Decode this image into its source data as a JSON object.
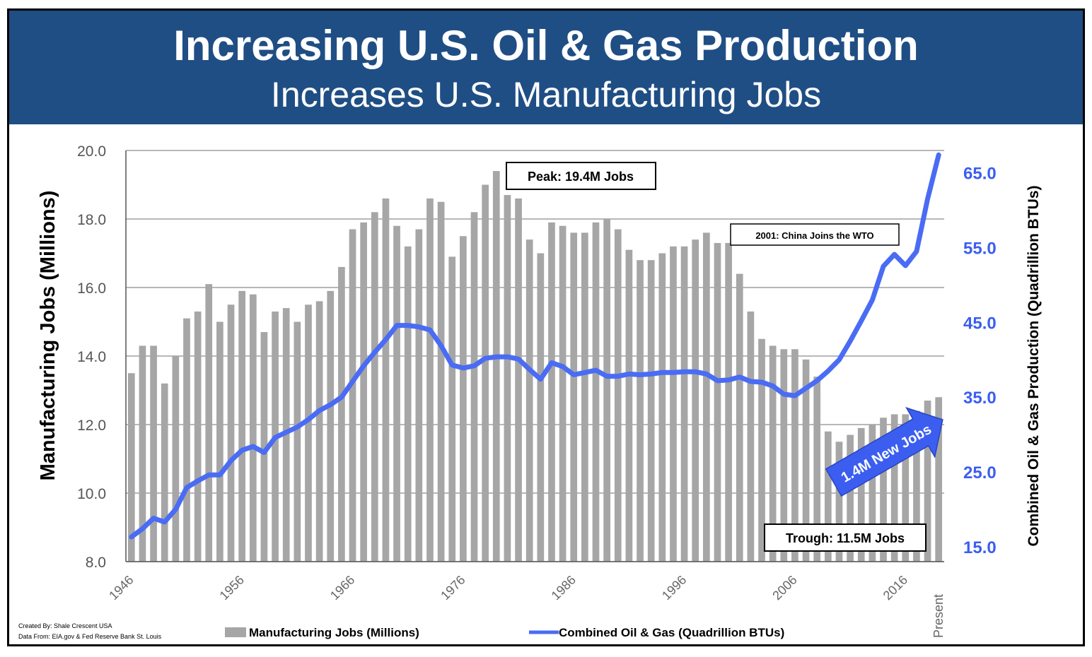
{
  "title": "Increasing U.S. Oil & Gas Production",
  "subtitle": "Increases U.S. Manufacturing Jobs",
  "credits": {
    "created_by": "Created By: Shale Crescent USA",
    "data_from": "Data From: EIA.gov & Fed Reserve Bank St. Louis"
  },
  "colors": {
    "banner": "#1f4e84",
    "bars": "#a6a6a6",
    "line": "#4a6cf4",
    "right_axis_text": "#3b5ef0"
  },
  "chart_data": {
    "type": "bar+line",
    "xlabel": "",
    "ylabel_left": "Manufacturing Jobs (Millions)",
    "ylabel_right": "Combined Oil & Gas Production (Quadrillion BTUs)",
    "ylim_left": [
      8.0,
      20.0
    ],
    "yticks_left": [
      "8.0",
      "10.0",
      "12.0",
      "14.0",
      "16.0",
      "18.0",
      "20.0"
    ],
    "ylim_right": [
      13.0,
      68.0
    ],
    "yticks_right": [
      "15.0",
      "25.0",
      "35.0",
      "45.0",
      "55.0",
      "65.0"
    ],
    "x_tick_labels": [
      "1946",
      "1956",
      "1966",
      "1976",
      "1986",
      "1996",
      "2006",
      "2016",
      "Present"
    ],
    "grid": true,
    "legend_position": "bottom",
    "categories": [
      "1946",
      "1947",
      "1948",
      "1949",
      "1950",
      "1951",
      "1952",
      "1953",
      "1954",
      "1955",
      "1956",
      "1957",
      "1958",
      "1959",
      "1960",
      "1961",
      "1962",
      "1963",
      "1964",
      "1965",
      "1966",
      "1967",
      "1968",
      "1969",
      "1970",
      "1971",
      "1972",
      "1973",
      "1974",
      "1975",
      "1976",
      "1977",
      "1978",
      "1979",
      "1980",
      "1981",
      "1982",
      "1983",
      "1984",
      "1985",
      "1986",
      "1987",
      "1988",
      "1989",
      "1990",
      "1991",
      "1992",
      "1993",
      "1994",
      "1995",
      "1996",
      "1997",
      "1998",
      "1999",
      "2000",
      "2001",
      "2002",
      "2003",
      "2004",
      "2005",
      "2006",
      "2007",
      "2008",
      "2009",
      "2010",
      "2011",
      "2012",
      "2013",
      "2014",
      "2015",
      "2016",
      "2017",
      "2018",
      "Present"
    ],
    "series": [
      {
        "name": "Manufacturing Jobs (Millions)",
        "type": "bar",
        "axis": "left",
        "values": [
          13.5,
          14.3,
          14.3,
          13.2,
          14.0,
          15.1,
          15.3,
          16.1,
          15.0,
          15.5,
          15.9,
          15.8,
          14.7,
          15.3,
          15.4,
          15.0,
          15.5,
          15.6,
          15.9,
          16.6,
          17.7,
          17.9,
          18.2,
          18.6,
          17.8,
          17.2,
          17.7,
          18.6,
          18.5,
          16.9,
          17.5,
          18.2,
          19.0,
          19.4,
          18.7,
          18.6,
          17.4,
          17.0,
          17.9,
          17.8,
          17.6,
          17.6,
          17.9,
          18.0,
          17.7,
          17.1,
          16.8,
          16.8,
          17.0,
          17.2,
          17.2,
          17.4,
          17.6,
          17.3,
          17.3,
          16.4,
          15.3,
          14.5,
          14.3,
          14.2,
          14.2,
          13.9,
          13.4,
          11.8,
          11.5,
          11.7,
          11.9,
          12.0,
          12.2,
          12.3,
          12.3,
          12.4,
          12.7,
          12.8
        ]
      },
      {
        "name": "Combined Oil & Gas (Quadrillion BTUs)",
        "type": "line",
        "axis": "right",
        "values": [
          16.3,
          17.4,
          18.8,
          18.3,
          20.0,
          22.9,
          23.8,
          24.6,
          24.6,
          26.5,
          27.9,
          28.4,
          27.6,
          29.6,
          30.3,
          31.0,
          32.0,
          33.2,
          34.0,
          35.0,
          37.1,
          39.2,
          41.0,
          42.7,
          44.6,
          44.6,
          44.4,
          44.0,
          41.9,
          39.3,
          38.9,
          39.2,
          40.2,
          40.4,
          40.4,
          40.1,
          38.7,
          37.4,
          39.6,
          39.1,
          38.0,
          38.3,
          38.6,
          37.8,
          37.8,
          38.1,
          38.0,
          38.1,
          38.3,
          38.3,
          38.4,
          38.4,
          38.1,
          37.2,
          37.3,
          37.7,
          37.1,
          37.0,
          36.5,
          35.4,
          35.2,
          36.2,
          37.2,
          38.5,
          40.0,
          42.5,
          45.2,
          48.0,
          52.5,
          54.1,
          52.6,
          54.5,
          61.5,
          67.4
        ]
      }
    ],
    "annotations": {
      "peak": "Peak: 19.4M Jobs",
      "trough": "Trough:  11.5M Jobs",
      "wto": "2001: China Joins the WTO",
      "new_jobs_arrow": "1.4M New Jobs"
    }
  }
}
